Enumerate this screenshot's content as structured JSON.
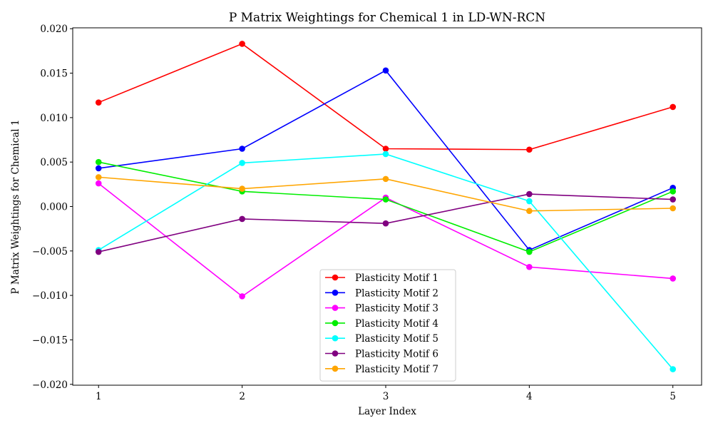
{
  "chart_data": {
    "type": "line",
    "title": "P Matrix Weightings for Chemical 1 in LD-WN-RCN",
    "xlabel": "Layer Index",
    "ylabel": "P Matrix Weightings for Chemical 1",
    "x": [
      1,
      2,
      3,
      4,
      5
    ],
    "x_tick_labels": [
      "1",
      "2",
      "3",
      "4",
      "5"
    ],
    "xlim": [
      0.82,
      5.2
    ],
    "ylim": [
      -0.0201,
      0.0201
    ],
    "y_ticks": [
      -0.02,
      -0.015,
      -0.01,
      -0.005,
      0.0,
      0.005,
      0.01,
      0.015,
      0.02
    ],
    "y_tick_labels": [
      "−0.020",
      "−0.015",
      "−0.010",
      "−0.005",
      "0.000",
      "0.005",
      "0.010",
      "0.015",
      "0.020"
    ],
    "grid": false,
    "legend_position": "bottom-center",
    "series": [
      {
        "name": "Plasticity Motif 1",
        "color": "#ff0000",
        "values": [
          0.0117,
          0.0183,
          0.0065,
          0.0064,
          0.0112
        ]
      },
      {
        "name": "Plasticity Motif 2",
        "color": "#0000ff",
        "values": [
          0.0043,
          0.0065,
          0.0153,
          -0.0049,
          0.0021
        ]
      },
      {
        "name": "Plasticity Motif 3",
        "color": "#ff00ff",
        "values": [
          0.0026,
          -0.0101,
          0.001,
          -0.0068,
          -0.0081
        ]
      },
      {
        "name": "Plasticity Motif 4",
        "color": "#00ee00",
        "values": [
          0.005,
          0.0017,
          0.0008,
          -0.0051,
          0.0017
        ]
      },
      {
        "name": "Plasticity Motif 5",
        "color": "#00ffff",
        "values": [
          -0.0049,
          0.0049,
          0.0059,
          0.0006,
          -0.0183
        ]
      },
      {
        "name": "Plasticity Motif 6",
        "color": "#800080",
        "values": [
          -0.0051,
          -0.0014,
          -0.0019,
          0.0014,
          0.0008
        ]
      },
      {
        "name": "Plasticity Motif 7",
        "color": "#ffa500",
        "values": [
          0.0033,
          0.002,
          0.0031,
          -0.0005,
          -0.0002
        ]
      }
    ]
  }
}
